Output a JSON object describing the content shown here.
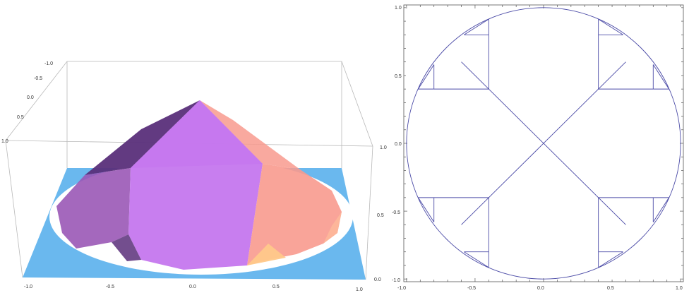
{
  "left_plot": {
    "type": "3d-surface",
    "axis_ticks": {
      "x": [
        "-1.0",
        "-0.5",
        "0.0",
        "0.5",
        "1.0"
      ],
      "y": [
        "-1.0",
        "-0.5",
        "0.0",
        "0.5",
        "1.0"
      ],
      "z": [
        "1.0",
        "0.5",
        "0.0"
      ]
    },
    "colors": {
      "base": "#6ab8ee",
      "purple_dark": "#5a2f7a",
      "purple_mid": "#9a58b6",
      "violet": "#c577ee",
      "salmon": "#f89a8e",
      "peach": "#fdb89a",
      "gold": "#ffc98a"
    }
  },
  "right_plot": {
    "type": "line",
    "axis_ticks": {
      "x": [
        "-1.0",
        "-0.5",
        "0.0",
        "0.5",
        "1.0"
      ],
      "y": [
        "1.0",
        "0.5",
        "0.0",
        "-0.5",
        "-1.0"
      ]
    },
    "line_color": "#4a4aa6"
  },
  "chart_data": [
    {
      "type": "3d-surface",
      "xlim": [
        -1,
        1
      ],
      "ylim": [
        -1,
        1
      ],
      "zlim": [
        0,
        1
      ],
      "apex": [
        0,
        0,
        1
      ],
      "base_shape": "disk of radius 1 with square base plane"
    },
    {
      "type": "line",
      "xlim": [
        -1.02,
        1.02
      ],
      "ylim": [
        -1.02,
        1.02
      ],
      "segments": [
        [
          [
            -0.6,
            0.6
          ],
          [
            0.6,
            -0.6
          ]
        ],
        [
          [
            -0.6,
            -0.6
          ],
          [
            0.6,
            0.6
          ]
        ],
        [
          [
            -0.8,
            0.4
          ],
          [
            -0.4,
            0.4
          ]
        ],
        [
          [
            -0.4,
            0.4
          ],
          [
            -0.4,
            0.8
          ]
        ],
        [
          [
            -0.8,
            0.4
          ],
          [
            -0.8,
            0.58
          ]
        ],
        [
          [
            -0.4,
            0.8
          ],
          [
            -0.58,
            0.8
          ]
        ],
        [
          [
            0.8,
            0.4
          ],
          [
            0.4,
            0.4
          ]
        ],
        [
          [
            0.4,
            0.4
          ],
          [
            0.4,
            0.8
          ]
        ],
        [
          [
            0.8,
            0.4
          ],
          [
            0.8,
            0.58
          ]
        ],
        [
          [
            0.4,
            0.8
          ],
          [
            0.58,
            0.8
          ]
        ],
        [
          [
            -0.8,
            -0.4
          ],
          [
            -0.4,
            -0.4
          ]
        ],
        [
          [
            -0.4,
            -0.4
          ],
          [
            -0.4,
            -0.8
          ]
        ],
        [
          [
            -0.8,
            -0.4
          ],
          [
            -0.8,
            -0.58
          ]
        ],
        [
          [
            -0.4,
            -0.8
          ],
          [
            -0.58,
            -0.8
          ]
        ],
        [
          [
            0.8,
            -0.4
          ],
          [
            0.4,
            -0.4
          ]
        ],
        [
          [
            0.4,
            -0.4
          ],
          [
            0.4,
            -0.8
          ]
        ],
        [
          [
            0.8,
            -0.4
          ],
          [
            0.8,
            -0.58
          ]
        ],
        [
          [
            0.4,
            -0.8
          ],
          [
            0.58,
            -0.8
          ]
        ],
        [
          [
            -0.8,
            0.58
          ],
          [
            -0.915,
            0.4
          ]
        ],
        [
          [
            -0.58,
            0.8
          ],
          [
            -0.4,
            0.915
          ]
        ],
        [
          [
            0.8,
            0.58
          ],
          [
            0.915,
            0.4
          ]
        ],
        [
          [
            0.58,
            0.8
          ],
          [
            0.4,
            0.915
          ]
        ],
        [
          [
            -0.8,
            -0.58
          ],
          [
            -0.915,
            -0.4
          ]
        ],
        [
          [
            -0.58,
            -0.8
          ],
          [
            -0.4,
            -0.915
          ]
        ],
        [
          [
            0.8,
            -0.58
          ],
          [
            0.915,
            -0.4
          ]
        ],
        [
          [
            0.58,
            -0.8
          ],
          [
            0.4,
            -0.915
          ]
        ],
        [
          [
            -0.8,
            0.4
          ],
          [
            -0.915,
            0.4
          ]
        ],
        [
          [
            -0.4,
            0.8
          ],
          [
            -0.4,
            0.915
          ]
        ],
        [
          [
            0.8,
            0.4
          ],
          [
            0.915,
            0.4
          ]
        ],
        [
          [
            0.4,
            0.8
          ],
          [
            0.4,
            0.915
          ]
        ],
        [
          [
            -0.8,
            -0.4
          ],
          [
            -0.915,
            -0.4
          ]
        ],
        [
          [
            -0.4,
            -0.8
          ],
          [
            -0.4,
            -0.915
          ]
        ],
        [
          [
            0.8,
            -0.4
          ],
          [
            0.915,
            -0.4
          ]
        ],
        [
          [
            0.4,
            -0.8
          ],
          [
            0.4,
            -0.915
          ]
        ]
      ],
      "circle": {
        "center": [
          0,
          0
        ],
        "radius": 1
      }
    }
  ]
}
